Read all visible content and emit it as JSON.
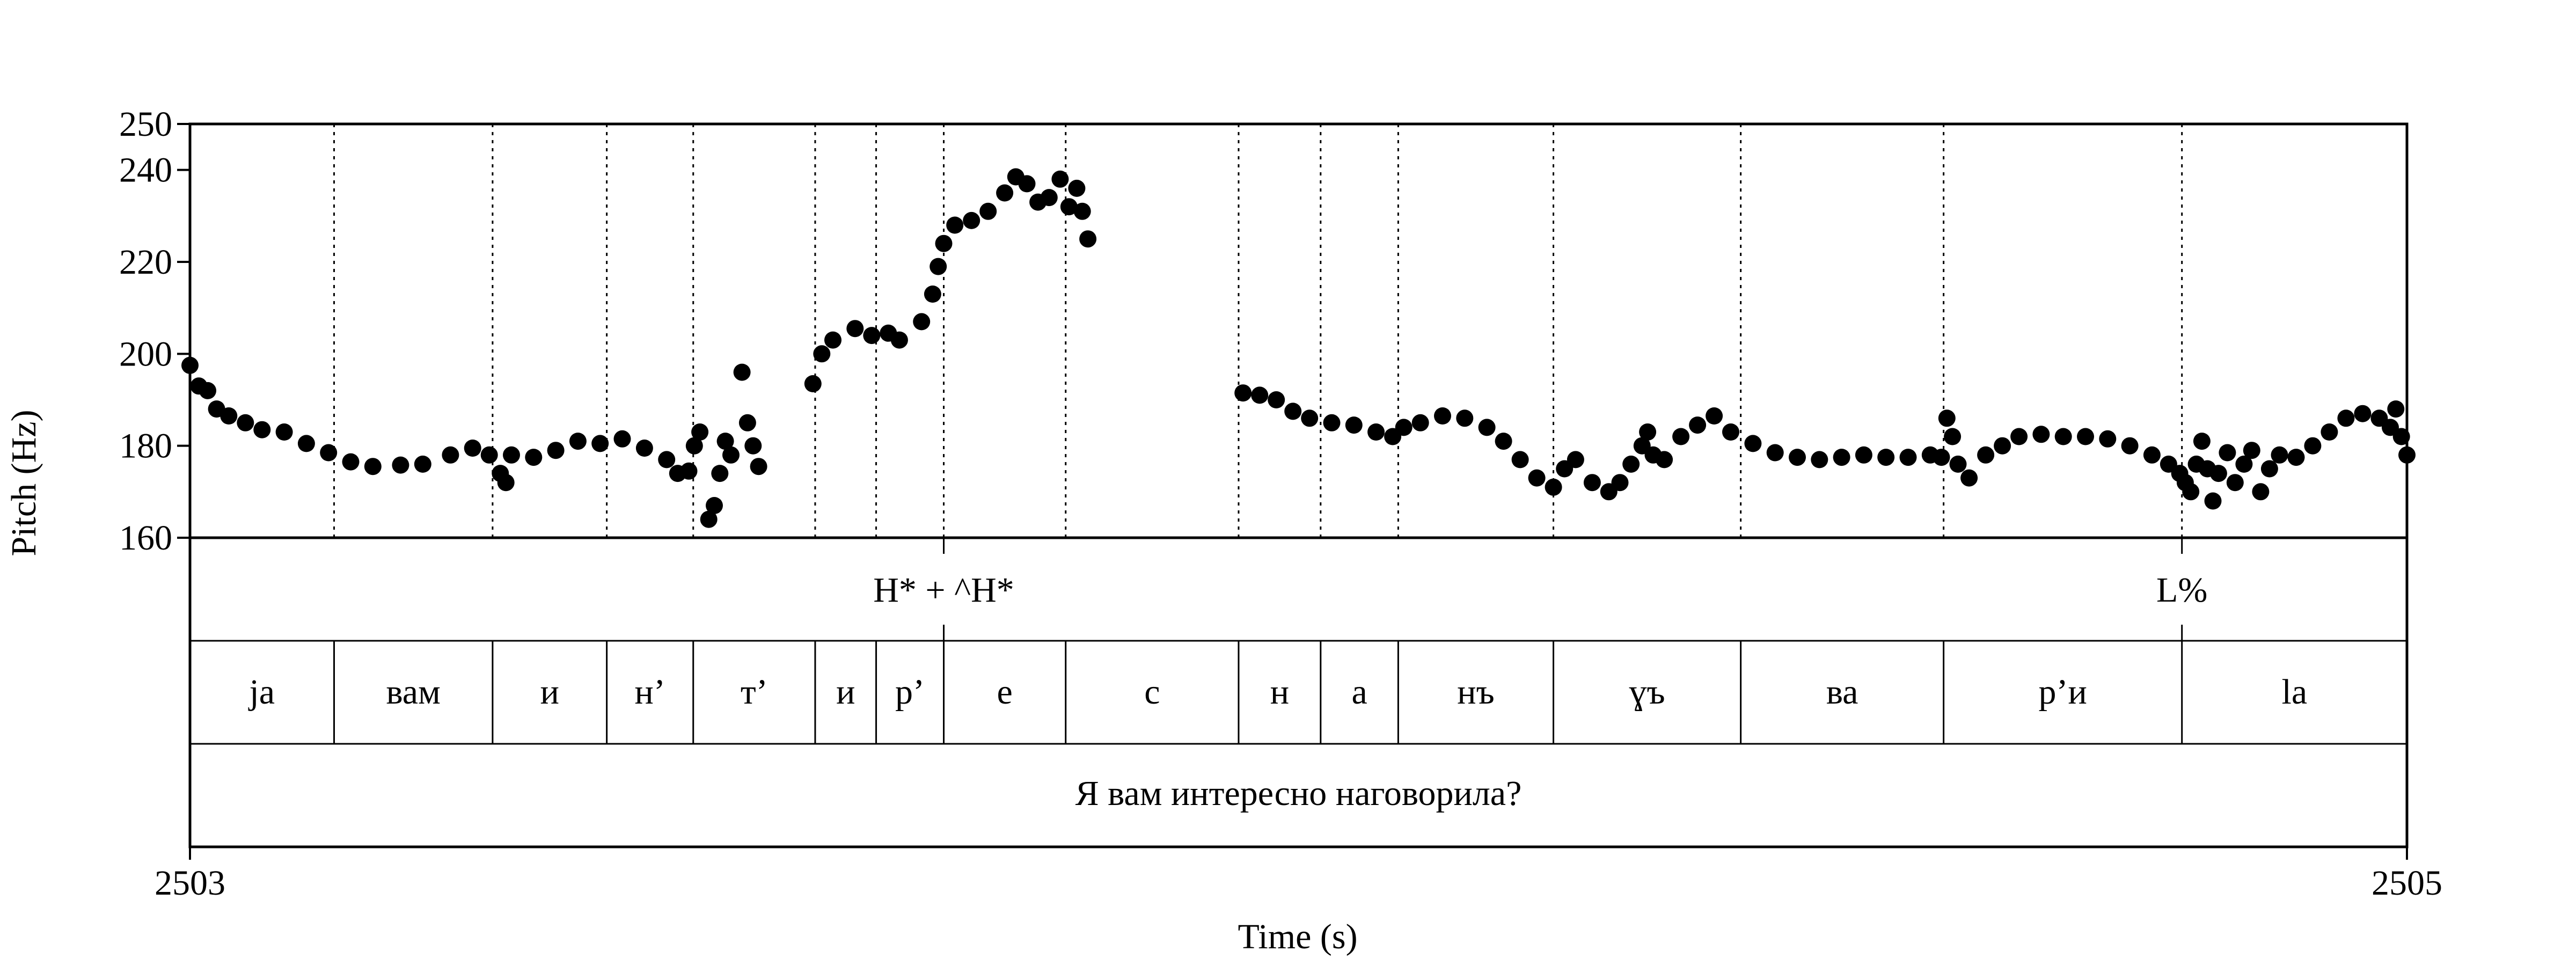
{
  "chart_data": {
    "type": "scatter",
    "ylabel": "Pitch (Hz)",
    "xlabel": "Time (s)",
    "xlim": [
      2503,
      2505
    ],
    "ylim": [
      160,
      250
    ],
    "yticks": [
      160,
      180,
      200,
      220,
      240,
      250
    ],
    "xtick_labels": [
      "2503",
      "2505"
    ],
    "colors": {
      "points": "#000000",
      "lines": "#000000"
    },
    "tone_tier": [
      {
        "label": "H* + ^H*",
        "t": 2503.68
      },
      {
        "label": "L%",
        "t": 2504.797
      }
    ],
    "syllable_tier": [
      {
        "label": "ja",
        "start": 2503.0,
        "end": 2503.13
      },
      {
        "label": "вам",
        "start": 2503.13,
        "end": 2503.273
      },
      {
        "label": "и",
        "start": 2503.273,
        "end": 2503.376
      },
      {
        "label": "н’",
        "start": 2503.376,
        "end": 2503.454
      },
      {
        "label": "т’",
        "start": 2503.454,
        "end": 2503.564
      },
      {
        "label": "и",
        "start": 2503.564,
        "end": 2503.619
      },
      {
        "label": "р’",
        "start": 2503.619,
        "end": 2503.68
      },
      {
        "label": "е",
        "start": 2503.68,
        "end": 2503.79
      },
      {
        "label": "с",
        "start": 2503.79,
        "end": 2503.946
      },
      {
        "label": "н",
        "start": 2503.946,
        "end": 2504.02
      },
      {
        "label": "а",
        "start": 2504.02,
        "end": 2504.09
      },
      {
        "label": "нъ",
        "start": 2504.09,
        "end": 2504.23
      },
      {
        "label": "ɣъ",
        "start": 2504.23,
        "end": 2504.399
      },
      {
        "label": "ва",
        "start": 2504.399,
        "end": 2504.582
      },
      {
        "label": "р’и",
        "start": 2504.582,
        "end": 2504.797
      },
      {
        "label": "la",
        "start": 2504.797,
        "end": 2505.0
      }
    ],
    "sentence_tier": "Я вам интересно наговорила?",
    "pitch_contour": [
      [
        2503.0,
        197.5
      ],
      [
        2503.008,
        193
      ],
      [
        2503.016,
        192
      ],
      [
        2503.024,
        188
      ],
      [
        2503.035,
        186.5
      ],
      [
        2503.05,
        185
      ],
      [
        2503.065,
        183.5
      ],
      [
        2503.085,
        183
      ],
      [
        2503.105,
        180.5
      ],
      [
        2503.125,
        178.5
      ],
      [
        2503.145,
        176.5
      ],
      [
        2503.165,
        175.5
      ],
      [
        2503.19,
        175.8
      ],
      [
        2503.21,
        176
      ],
      [
        2503.235,
        178
      ],
      [
        2503.255,
        179.5
      ],
      [
        2503.27,
        178
      ],
      [
        2503.28,
        174
      ],
      [
        2503.285,
        172
      ],
      [
        2503.29,
        178
      ],
      [
        2503.31,
        177.5
      ],
      [
        2503.33,
        179
      ],
      [
        2503.35,
        181
      ],
      [
        2503.37,
        180.5
      ],
      [
        2503.39,
        181.5
      ],
      [
        2503.41,
        179.5
      ],
      [
        2503.43,
        177
      ],
      [
        2503.44,
        174
      ],
      [
        2503.45,
        174.5
      ],
      [
        2503.455,
        180
      ],
      [
        2503.46,
        183
      ],
      [
        2503.468,
        164
      ],
      [
        2503.473,
        167
      ],
      [
        2503.478,
        174
      ],
      [
        2503.483,
        181
      ],
      [
        2503.488,
        178
      ],
      [
        2503.498,
        196
      ],
      [
        2503.503,
        185
      ],
      [
        2503.508,
        180
      ],
      [
        2503.513,
        175.5
      ],
      [
        2503.562,
        193.5
      ],
      [
        2503.57,
        200
      ],
      [
        2503.58,
        203
      ],
      [
        2503.6,
        205.5
      ],
      [
        2503.615,
        204
      ],
      [
        2503.63,
        204.5
      ],
      [
        2503.64,
        203
      ],
      [
        2503.66,
        207
      ],
      [
        2503.67,
        213
      ],
      [
        2503.675,
        219
      ],
      [
        2503.68,
        224
      ],
      [
        2503.69,
        228
      ],
      [
        2503.705,
        229
      ],
      [
        2503.72,
        231
      ],
      [
        2503.735,
        235
      ],
      [
        2503.745,
        238.5
      ],
      [
        2503.755,
        237
      ],
      [
        2503.765,
        233
      ],
      [
        2503.775,
        234
      ],
      [
        2503.785,
        238
      ],
      [
        2503.793,
        232
      ],
      [
        2503.8,
        236
      ],
      [
        2503.805,
        231
      ],
      [
        2503.81,
        225
      ],
      [
        2503.95,
        191.5
      ],
      [
        2503.965,
        191
      ],
      [
        2503.98,
        190
      ],
      [
        2503.995,
        187.5
      ],
      [
        2504.01,
        186
      ],
      [
        2504.03,
        185
      ],
      [
        2504.05,
        184.5
      ],
      [
        2504.07,
        183
      ],
      [
        2504.085,
        182
      ],
      [
        2504.095,
        184
      ],
      [
        2504.11,
        185
      ],
      [
        2504.13,
        186.5
      ],
      [
        2504.15,
        186
      ],
      [
        2504.17,
        184
      ],
      [
        2504.185,
        181
      ],
      [
        2504.2,
        177
      ],
      [
        2504.215,
        173
      ],
      [
        2504.23,
        171
      ],
      [
        2504.24,
        175
      ],
      [
        2504.25,
        177
      ],
      [
        2504.265,
        172
      ],
      [
        2504.28,
        170
      ],
      [
        2504.29,
        172
      ],
      [
        2504.3,
        176
      ],
      [
        2504.31,
        180
      ],
      [
        2504.315,
        183
      ],
      [
        2504.32,
        178
      ],
      [
        2504.33,
        177
      ],
      [
        2504.345,
        182
      ],
      [
        2504.36,
        184.5
      ],
      [
        2504.375,
        186.5
      ],
      [
        2504.39,
        183
      ],
      [
        2504.41,
        180.5
      ],
      [
        2504.43,
        178.5
      ],
      [
        2504.45,
        177.5
      ],
      [
        2504.47,
        177
      ],
      [
        2504.49,
        177.5
      ],
      [
        2504.51,
        178
      ],
      [
        2504.53,
        177.5
      ],
      [
        2504.55,
        177.5
      ],
      [
        2504.57,
        178
      ],
      [
        2504.58,
        177.5
      ],
      [
        2504.585,
        186
      ],
      [
        2504.59,
        182
      ],
      [
        2504.595,
        176
      ],
      [
        2504.605,
        173
      ],
      [
        2504.62,
        178
      ],
      [
        2504.635,
        180
      ],
      [
        2504.65,
        182
      ],
      [
        2504.67,
        182.5
      ],
      [
        2504.69,
        182
      ],
      [
        2504.71,
        182
      ],
      [
        2504.73,
        181.5
      ],
      [
        2504.75,
        180
      ],
      [
        2504.77,
        178
      ],
      [
        2504.785,
        176
      ],
      [
        2504.795,
        174
      ],
      [
        2504.8,
        172
      ],
      [
        2504.805,
        170
      ],
      [
        2504.81,
        176
      ],
      [
        2504.815,
        181
      ],
      [
        2504.82,
        175
      ],
      [
        2504.825,
        168
      ],
      [
        2504.83,
        174
      ],
      [
        2504.838,
        178.5
      ],
      [
        2504.845,
        172
      ],
      [
        2504.853,
        176
      ],
      [
        2504.86,
        179
      ],
      [
        2504.868,
        170
      ],
      [
        2504.876,
        175
      ],
      [
        2504.885,
        178
      ],
      [
        2504.9,
        177.5
      ],
      [
        2504.915,
        180
      ],
      [
        2504.93,
        183
      ],
      [
        2504.945,
        186
      ],
      [
        2504.96,
        187
      ],
      [
        2504.975,
        186
      ],
      [
        2504.985,
        184
      ],
      [
        2504.99,
        188
      ],
      [
        2504.995,
        182
      ],
      [
        2505.0,
        178
      ]
    ]
  }
}
